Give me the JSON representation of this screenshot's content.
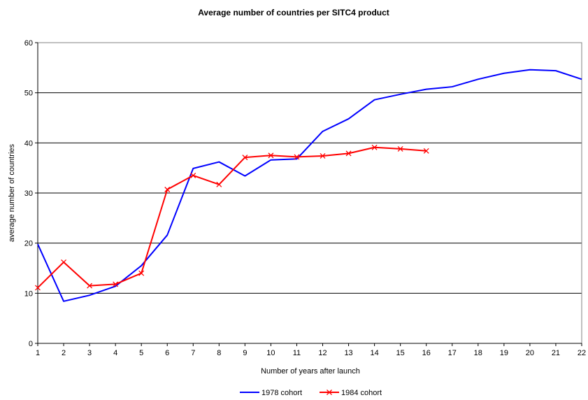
{
  "chart_data": {
    "type": "line",
    "title": "Average number of countries per SITC4 product",
    "xlabel": "Number of years after launch",
    "ylabel": "average number of countries",
    "x": [
      1,
      2,
      3,
      4,
      5,
      6,
      7,
      8,
      9,
      10,
      11,
      12,
      13,
      14,
      15,
      16,
      17,
      18,
      19,
      20,
      21,
      22
    ],
    "xlim": [
      1,
      22
    ],
    "ylim": [
      0,
      60
    ],
    "yticks": [
      0,
      10,
      20,
      30,
      40,
      50,
      60
    ],
    "grid": "horizontal",
    "legend": "bottom",
    "series": [
      {
        "name": "1978 cohort",
        "color": "#0000ff",
        "marker": "none",
        "x": [
          1,
          2,
          3,
          4,
          5,
          6,
          7,
          8,
          9,
          10,
          11,
          12,
          13,
          14,
          15,
          16,
          17,
          18,
          19,
          20,
          21,
          22
        ],
        "values": [
          19.8,
          8.4,
          9.6,
          11.4,
          15.5,
          21.6,
          34.9,
          36.2,
          33.4,
          36.6,
          36.8,
          42.3,
          44.8,
          48.6,
          49.7,
          50.7,
          51.2,
          52.7,
          53.9,
          54.6,
          54.4,
          52.7
        ]
      },
      {
        "name": "1984 cohort",
        "color": "#ff0000",
        "marker": "x",
        "x": [
          1,
          2,
          3,
          4,
          5,
          6,
          7,
          8,
          9,
          10,
          11,
          12,
          13,
          14,
          15,
          16
        ],
        "values": [
          11.1,
          16.2,
          11.5,
          11.8,
          14.0,
          30.7,
          33.5,
          31.7,
          37.1,
          37.5,
          37.2,
          37.4,
          37.9,
          39.1,
          38.8,
          38.4
        ]
      }
    ]
  }
}
